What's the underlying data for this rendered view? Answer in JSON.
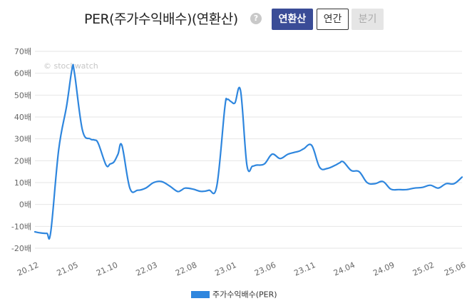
{
  "header": {
    "title": "PER(주가수익배수)(연환산)",
    "help_glyph": "?",
    "buttons": {
      "annualized": "연환산",
      "annual": "연간",
      "quarterly": "분기"
    }
  },
  "watermark": "© stockwatch",
  "colors": {
    "line": "#2e86de",
    "grid": "#e6e6e6",
    "accent": "#3a4c97"
  },
  "chart_data": {
    "type": "line",
    "title": "PER(주가수익배수)(연환산)",
    "y_unit": "배",
    "ylim": [
      -20,
      70
    ],
    "y_ticks": [
      -20,
      -10,
      0,
      10,
      20,
      30,
      40,
      50,
      60,
      70
    ],
    "y_tick_labels": [
      "-20배",
      "-10배",
      "0배",
      "10배",
      "20배",
      "30배",
      "40배",
      "50배",
      "60배",
      "70배"
    ],
    "x_range": [
      0,
      54
    ],
    "x_ticks": [
      0,
      5,
      10,
      15,
      20,
      25,
      30,
      35,
      40,
      45,
      50,
      54
    ],
    "x_tick_labels": [
      "20.12",
      "21.05",
      "21.10",
      "22.03",
      "22.08",
      "23.01",
      "23.06",
      "23.11",
      "24.04",
      "24.09",
      "25.02",
      "25.06"
    ],
    "legend": [
      "주가수익배수(PER)"
    ],
    "legend_position": "bottom-center",
    "series": [
      {
        "name": "주가수익배수(PER)",
        "x": [
          0,
          0.7,
          1.5,
          2.0,
          3.0,
          4.0,
          4.7,
          5.0,
          6.0,
          7.0,
          7.5,
          8.0,
          9.0,
          9.5,
          10.0,
          10.5,
          11.0,
          12.0,
          13.0,
          14.0,
          15.0,
          16.0,
          17.0,
          18.0,
          18.5,
          19.0,
          20.0,
          21.0,
          22.0,
          23.0,
          24.0,
          24.3,
          24.8,
          25.3,
          26.0,
          26.8,
          27.5,
          28.0,
          29.0,
          30.0,
          31.0,
          32.0,
          33.0,
          33.5,
          34.0,
          35.0,
          36.0,
          37.0,
          38.0,
          38.5,
          39.0,
          40.0,
          41.0,
          42.0,
          43.0,
          44.0,
          45.0,
          46.0,
          47.0,
          48.0,
          49.0,
          50.0,
          51.0,
          52.0,
          53.0,
          54.0
        ],
        "values": [
          -12.5,
          -13.0,
          -13.2,
          -12.5,
          25.0,
          45.0,
          62.0,
          60.0,
          34.0,
          30.0,
          29.5,
          28.0,
          18.0,
          18.5,
          19.5,
          23.0,
          27.0,
          7.5,
          6.5,
          7.5,
          10.0,
          10.5,
          8.5,
          6.0,
          6.5,
          7.5,
          7.0,
          6.0,
          6.5,
          8.5,
          44.0,
          48.0,
          47.0,
          46.5,
          52.0,
          18.0,
          17.5,
          18.0,
          18.5,
          23.0,
          21.0,
          23.0,
          24.0,
          24.5,
          25.5,
          27.0,
          17.0,
          16.5,
          18.0,
          19.0,
          19.5,
          15.5,
          15.0,
          10.0,
          9.5,
          10.5,
          7.0,
          6.8,
          6.8,
          7.5,
          7.8,
          8.8,
          7.5,
          9.5,
          9.5,
          12.5
        ]
      }
    ]
  }
}
